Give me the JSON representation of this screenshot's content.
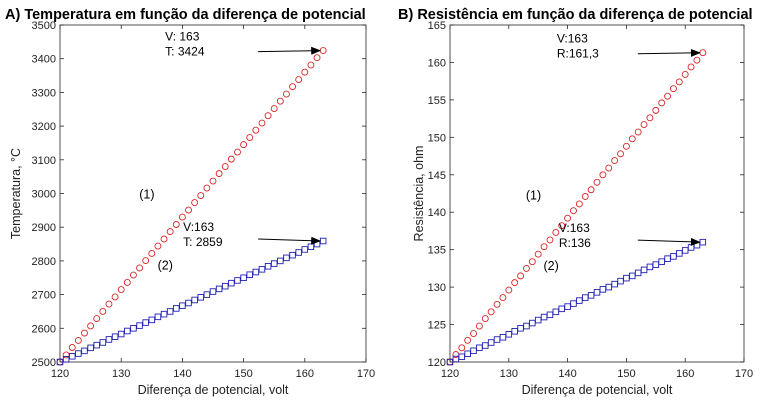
{
  "chart_data": [
    {
      "type": "scatter",
      "title": "A) Temperatura em função da diferença de potencial",
      "xlabel": "Diferença de potencial, volt",
      "ylabel": "Temperatura, °C",
      "xlim": [
        120,
        170
      ],
      "ylim": [
        2500,
        3500
      ],
      "xticks": [
        "120",
        "130",
        "140",
        "150",
        "160",
        "170"
      ],
      "yticks": [
        "2500",
        "2600",
        "2700",
        "2800",
        "2900",
        "3000",
        "3100",
        "3200",
        "3300",
        "3400",
        "3500"
      ],
      "grid": false,
      "series": [
        {
          "name": "(1)",
          "marker": "circle",
          "color": "#d62728",
          "x": [
            120,
            121,
            122,
            123,
            124,
            125,
            126,
            127,
            128,
            129,
            130,
            131,
            132,
            133,
            134,
            135,
            136,
            137,
            138,
            139,
            140,
            141,
            142,
            143,
            144,
            145,
            146,
            147,
            148,
            149,
            150,
            151,
            152,
            153,
            154,
            155,
            156,
            157,
            158,
            159,
            160,
            161,
            162,
            163
          ],
          "y": [
            2500,
            2521,
            2543,
            2564,
            2586,
            2607,
            2629,
            2650,
            2672,
            2693,
            2715,
            2736,
            2758,
            2779,
            2801,
            2822,
            2844,
            2865,
            2887,
            2908,
            2930,
            2951,
            2973,
            2994,
            3016,
            3037,
            3059,
            3080,
            3102,
            3123,
            3145,
            3166,
            3188,
            3209,
            3231,
            3252,
            3274,
            3295,
            3317,
            3338,
            3360,
            3381,
            3403,
            3424
          ]
        },
        {
          "name": "(2)",
          "marker": "square",
          "color": "#1f1fb4",
          "x": [
            120,
            121,
            122,
            123,
            124,
            125,
            126,
            127,
            128,
            129,
            130,
            131,
            132,
            133,
            134,
            135,
            136,
            137,
            138,
            139,
            140,
            141,
            142,
            143,
            144,
            145,
            146,
            147,
            148,
            149,
            150,
            151,
            152,
            153,
            154,
            155,
            156,
            157,
            158,
            159,
            160,
            161,
            162,
            163
          ],
          "y": [
            2500,
            2508,
            2517,
            2525,
            2533,
            2542,
            2550,
            2558,
            2567,
            2575,
            2583,
            2592,
            2600,
            2608,
            2617,
            2625,
            2634,
            2642,
            2650,
            2659,
            2667,
            2675,
            2684,
            2692,
            2700,
            2709,
            2717,
            2725,
            2734,
            2742,
            2750,
            2759,
            2767,
            2775,
            2784,
            2792,
            2800,
            2809,
            2817,
            2825,
            2834,
            2842,
            2850,
            2859
          ]
        }
      ],
      "annotations": [
        {
          "lines": [
            "V: 163",
            "T: 3424"
          ],
          "target": [
            163,
            3424
          ]
        },
        {
          "lines": [
            "V:163",
            "T: 2859"
          ],
          "target": [
            163,
            2859
          ]
        }
      ],
      "series_labels": [
        {
          "text": "(1)",
          "at": [
            134.2,
            2985
          ]
        },
        {
          "text": "(2)",
          "at": [
            137.2,
            2775
          ]
        }
      ]
    },
    {
      "type": "scatter",
      "title": "B) Resistência em função da diferença de potencial",
      "xlabel": "Diferença de potencial, volt",
      "ylabel": "Resistência, ohm",
      "xlim": [
        120,
        170
      ],
      "ylim": [
        120,
        165
      ],
      "xticks": [
        "120",
        "130",
        "140",
        "150",
        "160",
        "170"
      ],
      "yticks": [
        "120",
        "125",
        "130",
        "135",
        "140",
        "145",
        "150",
        "155",
        "160",
        "165"
      ],
      "grid": false,
      "series": [
        {
          "name": "(1)",
          "marker": "circle",
          "color": "#d62728",
          "x": [
            120,
            121,
            122,
            123,
            124,
            125,
            126,
            127,
            128,
            129,
            130,
            131,
            132,
            133,
            134,
            135,
            136,
            137,
            138,
            139,
            140,
            141,
            142,
            143,
            144,
            145,
            146,
            147,
            148,
            149,
            150,
            151,
            152,
            153,
            154,
            155,
            156,
            157,
            158,
            159,
            160,
            161,
            162,
            163
          ],
          "y": [
            120,
            121,
            121.9,
            122.9,
            123.8,
            124.8,
            125.8,
            126.7,
            127.7,
            128.6,
            129.6,
            130.6,
            131.5,
            132.5,
            133.4,
            134.4,
            135.4,
            136.3,
            137.3,
            138.2,
            139.2,
            140.2,
            141.1,
            142.1,
            143,
            144,
            145,
            145.9,
            146.9,
            147.8,
            148.8,
            149.8,
            150.7,
            151.7,
            152.6,
            153.6,
            154.6,
            155.5,
            156.5,
            157.4,
            158.4,
            159.4,
            160.3,
            161.3
          ]
        },
        {
          "name": "(2)",
          "marker": "square",
          "color": "#1f1fb4",
          "x": [
            120,
            121,
            122,
            123,
            124,
            125,
            126,
            127,
            128,
            129,
            130,
            131,
            132,
            133,
            134,
            135,
            136,
            137,
            138,
            139,
            140,
            141,
            142,
            143,
            144,
            145,
            146,
            147,
            148,
            149,
            150,
            151,
            152,
            153,
            154,
            155,
            156,
            157,
            158,
            159,
            160,
            161,
            162,
            163
          ],
          "y": [
            120,
            120.4,
            120.7,
            121.1,
            121.5,
            121.9,
            122.2,
            122.6,
            123,
            123.3,
            123.7,
            124.1,
            124.5,
            124.8,
            125.2,
            125.6,
            126,
            126.3,
            126.7,
            127.1,
            127.4,
            127.8,
            128.2,
            128.6,
            128.9,
            129.3,
            129.7,
            130,
            130.4,
            130.8,
            131.2,
            131.5,
            131.9,
            132.3,
            132.7,
            133,
            133.4,
            133.8,
            134.1,
            134.5,
            134.9,
            135.3,
            135.6,
            136
          ]
        }
      ],
      "annotations": [
        {
          "lines": [
            "V:163",
            "R:161,3"
          ],
          "target": [
            163,
            161.3
          ]
        },
        {
          "lines": [
            "V:163",
            "R:136"
          ],
          "target": [
            163,
            136
          ]
        }
      ],
      "series_labels": [
        {
          "text": "(1)",
          "at": [
            134.2,
            141.7
          ]
        },
        {
          "text": "(2)",
          "at": [
            137.2,
            132.3
          ]
        }
      ]
    }
  ]
}
